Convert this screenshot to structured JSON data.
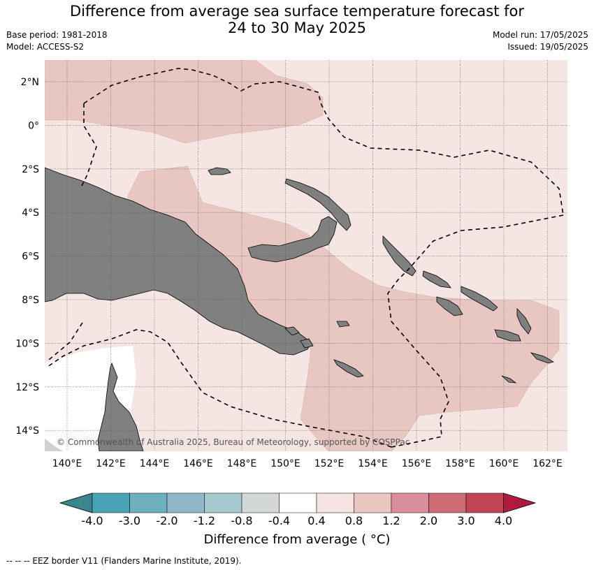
{
  "title_line1": "Difference from average sea surface temperature forecast for",
  "title_line2": "24 to 30 May 2025",
  "base_period": "Base period: 1981-2018",
  "model": "Model: ACCESS-S2",
  "model_run": "Model run: 17/05/2025",
  "issued": "Issued: 19/05/2025",
  "copyright": "© Commonwealth of Australia 2025, Bureau of Meteorology, supported by COSPPac",
  "lat_labels": [
    "2°N",
    "0°",
    "2°S",
    "4°S",
    "6°S",
    "8°S",
    "10°S",
    "12°S",
    "14°S"
  ],
  "lon_labels": [
    "140°E",
    "142°E",
    "144°E",
    "146°E",
    "148°E",
    "150°E",
    "152°E",
    "154°E",
    "156°E",
    "158°E",
    "160°E",
    "162°E"
  ],
  "colorbar": {
    "title": "Difference from average ( °C)",
    "tick_labels": [
      "-4.0",
      "-3.0",
      "-2.0",
      "-1.2",
      "-0.8",
      "-0.4",
      "0.4",
      "0.8",
      "1.2",
      "2.0",
      "3.0",
      "4.0"
    ],
    "colors": [
      "#3e848f",
      "#4aa3b4",
      "#6fb0c0",
      "#8db8c5",
      "#a7c8cd",
      "#d3d7d8",
      "#ffffff",
      "#f5e6e4",
      "#e8c6c1",
      "#d98f99",
      "#cd6a75",
      "#c04653",
      "#b01a3c"
    ]
  },
  "map_colors": {
    "land": "#808080",
    "class_0_4_0_8": "#f5e6e4",
    "class_0_8_1_2": "#e8c6c1",
    "grid": "#555555"
  },
  "footnote": "--  --  -- EEZ border V11 (Flanders Marine Institute, 2019)."
}
